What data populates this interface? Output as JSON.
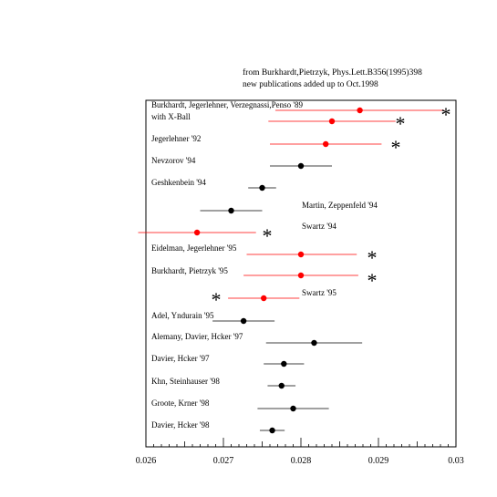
{
  "notes": {
    "line1": "from Burkhardt,Pietrzyk, Phys.Lett.B356(1995)398",
    "line2": "new publications added up to Oct.1998"
  },
  "chart_data": {
    "type": "scatter",
    "title": "",
    "xlabel": "",
    "ylabel": "",
    "xlim": [
      0.026,
      0.03
    ],
    "xticks": [
      "0.026",
      "0.027",
      "0.028",
      "0.029",
      "0.03"
    ],
    "points": [
      {
        "label": "Burkhardt, Jegerlehner, Verzegnassi,Penso '89",
        "value": 0.02876,
        "low": 0.02767,
        "high": 0.02985,
        "color": "#ff0000",
        "star": true
      },
      {
        "label": "with X-Ball",
        "value": 0.0284,
        "low": 0.02758,
        "high": 0.02922,
        "color": "#ff0000",
        "star": true
      },
      {
        "label": "Jegerlehner '92",
        "value": 0.02832,
        "low": 0.0276,
        "high": 0.02904,
        "color": "#ff0000",
        "star": true
      },
      {
        "label": "Nevzorov '94",
        "value": 0.028,
        "low": 0.0276,
        "high": 0.0284,
        "color": "#000000",
        "star": false
      },
      {
        "label": "Geshkenbein '94",
        "value": 0.0275,
        "low": 0.02732,
        "high": 0.02768,
        "color": "#000000",
        "star": false
      },
      {
        "label": "Martin, Zeppenfeld '94",
        "value": 0.0271,
        "low": 0.0267,
        "high": 0.0275,
        "color": "#000000",
        "star": false
      },
      {
        "label": "Swartz '94",
        "value": 0.02666,
        "low": 0.0259,
        "high": 0.02742,
        "color": "#ff0000",
        "star": true
      },
      {
        "label": "Eidelman, Jegerlehner '95",
        "value": 0.028,
        "low": 0.0273,
        "high": 0.02872,
        "color": "#ff0000",
        "star": true
      },
      {
        "label": "Burkhardt, Pietrzyk '95",
        "value": 0.028,
        "low": 0.02726,
        "high": 0.02874,
        "color": "#ff0000",
        "star": true
      },
      {
        "label": "Swartz '95",
        "value": 0.02752,
        "low": 0.02706,
        "high": 0.02798,
        "color": "#ff0000",
        "star": true
      },
      {
        "label": "Adel, Yndurain '95",
        "value": 0.02726,
        "low": 0.02686,
        "high": 0.02766,
        "color": "#000000",
        "star": false
      },
      {
        "label": "Alemany, Davier, Hcker '97",
        "value": 0.02817,
        "low": 0.02755,
        "high": 0.02879,
        "color": "#000000",
        "star": false
      },
      {
        "label": "Davier, Hcker '97",
        "value": 0.02778,
        "low": 0.02752,
        "high": 0.02804,
        "color": "#000000",
        "star": false
      },
      {
        "label": "Khn, Steinhauser '98",
        "value": 0.02775,
        "low": 0.02757,
        "high": 0.02793,
        "color": "#000000",
        "star": false
      },
      {
        "label": "Groote, Krner '98",
        "value": 0.0279,
        "low": 0.02744,
        "high": 0.02836,
        "color": "#000000",
        "star": false
      },
      {
        "label": "Davier, Hcker '98",
        "value": 0.02763,
        "low": 0.02747,
        "high": 0.02779,
        "color": "#000000",
        "star": false
      }
    ],
    "star_symbol": "*"
  }
}
